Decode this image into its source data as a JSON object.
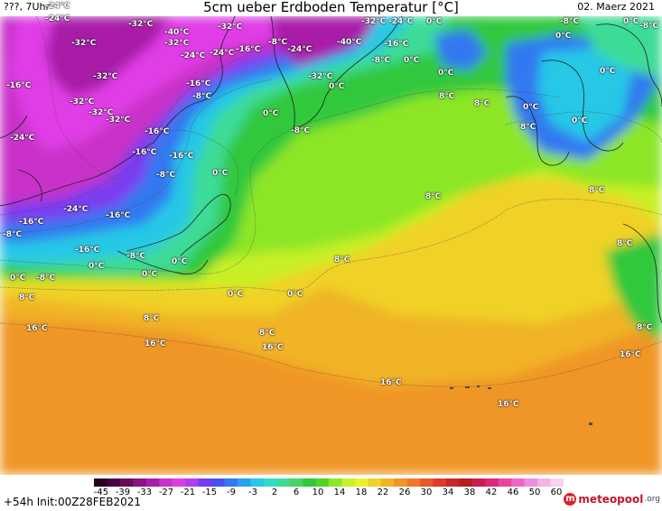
{
  "header": {
    "left_label": "???, 7Uhr",
    "title": "5cm ueber Erdboden Temperatur [°C]",
    "date": "02. Maerz 2021"
  },
  "map_labels": [
    {
      "text": "-24°C"
    },
    {
      "text": "-32°C"
    },
    {
      "text": "-40°C"
    },
    {
      "text": "-32°C"
    },
    {
      "text": "-32°C"
    },
    {
      "text": "-32°C"
    },
    {
      "text": "-24°C"
    },
    {
      "text": "-16°C"
    },
    {
      "text": "-8°C"
    },
    {
      "text": "-24°C"
    },
    {
      "text": "-40°C"
    },
    {
      "text": "-32°C"
    },
    {
      "text": "-24°C"
    },
    {
      "text": "0°C"
    },
    {
      "text": "-16°C"
    },
    {
      "text": "-8°C"
    },
    {
      "text": "0°C"
    },
    {
      "text": "-8°C"
    },
    {
      "text": "0°C"
    },
    {
      "text": "0°C"
    },
    {
      "text": "-16°C"
    },
    {
      "text": "-32°C"
    },
    {
      "text": "-16°C"
    },
    {
      "text": "-32°C"
    },
    {
      "text": "0°C"
    },
    {
      "text": "0°C"
    },
    {
      "text": "-24°C"
    },
    {
      "text": "-8°C"
    },
    {
      "text": "-32°C"
    },
    {
      "text": "-32°C"
    },
    {
      "text": "-16°C"
    },
    {
      "text": "8°C"
    },
    {
      "text": "8°C"
    },
    {
      "text": "0°C"
    },
    {
      "text": "0°C"
    },
    {
      "text": "-32°C"
    },
    {
      "text": "0°C"
    },
    {
      "text": "-8°C"
    },
    {
      "text": "8°C"
    },
    {
      "text": "-24°C"
    },
    {
      "text": "-16°C"
    },
    {
      "text": "-16°C"
    },
    {
      "text": "-24°C"
    },
    {
      "text": "-8°C"
    },
    {
      "text": "0°C"
    },
    {
      "text": "0°C"
    },
    {
      "text": "-8°C"
    },
    {
      "text": "8°C"
    },
    {
      "text": "8°C"
    },
    {
      "text": "-24°C"
    },
    {
      "text": "-16°C"
    },
    {
      "text": "-16°C"
    },
    {
      "text": "-8°C"
    },
    {
      "text": "8°C"
    },
    {
      "text": "-16°C"
    },
    {
      "text": "-8°C"
    },
    {
      "text": "0°C"
    },
    {
      "text": "0°C"
    },
    {
      "text": "0°C"
    },
    {
      "text": "8°C"
    },
    {
      "text": "0°C"
    },
    {
      "text": "-8°C"
    },
    {
      "text": "0°C"
    },
    {
      "text": "8°C"
    },
    {
      "text": "8°C"
    },
    {
      "text": "0°C"
    },
    {
      "text": "16°C"
    },
    {
      "text": "8°C"
    },
    {
      "text": "16°C"
    },
    {
      "text": "16°C"
    },
    {
      "text": "16°C"
    },
    {
      "text": "16°C"
    },
    {
      "text": "8°C"
    },
    {
      "text": "16°C"
    }
  ],
  "colorbar": {
    "ticks": [
      "-45",
      "-39",
      "-33",
      "-27",
      "-21",
      "-15",
      "-9",
      "-3",
      "2",
      "6",
      "10",
      "14",
      "18",
      "22",
      "26",
      "30",
      "34",
      "38",
      "42",
      "46",
      "50",
      "60"
    ],
    "colors": [
      "#2a0020",
      "#4a0040",
      "#6a0a5a",
      "#8a1480",
      "#a81ea8",
      "#c832c8",
      "#e03ce6",
      "#b33cf0",
      "#7a3cf0",
      "#4650ee",
      "#3278f0",
      "#28a0f0",
      "#28c8e6",
      "#30dcc8",
      "#3cdc96",
      "#46d264",
      "#32c83c",
      "#50d228",
      "#8ce628",
      "#c8f028",
      "#f0f028",
      "#f0d228",
      "#f0b428",
      "#f09628",
      "#f07828",
      "#e65a28",
      "#dc3c28",
      "#c82828",
      "#b41e1e",
      "#c81e50",
      "#dc2878",
      "#e646a0",
      "#f064c8",
      "#f08cdc",
      "#f0b4e6",
      "#f8d2f0"
    ]
  },
  "footer": {
    "run_info": "+54h  Init:00Z28FEB2021",
    "logo_name": "meteopool",
    "logo_tld": ".org"
  }
}
